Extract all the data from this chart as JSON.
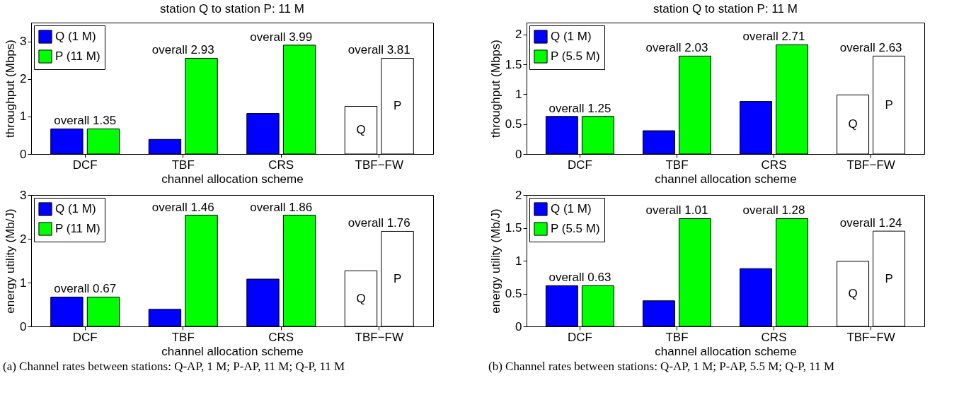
{
  "chart_data": [
    {
      "type": "bar",
      "title": "station Q to station P: 11 M",
      "xlabel": "channel allocation scheme",
      "ylabel": "throughput (Mbps)",
      "categories": [
        "DCF",
        "TBF",
        "CRS",
        "TBF−FW"
      ],
      "ylim": [
        0,
        3.5
      ],
      "yticks": [
        0,
        1,
        2,
        3
      ],
      "legend": "top left",
      "series": [
        {
          "name": "Q (1 M)",
          "color": "#0000ff",
          "colors": [
            "#0000ff",
            "#0000ff",
            "#0000ff",
            "#ffffff"
          ],
          "values": [
            0.67,
            0.39,
            1.08,
            1.27
          ],
          "value_labels": [
            null,
            null,
            null,
            "Q"
          ]
        },
        {
          "name": "P (11 M)",
          "color": "#00ff00",
          "colors": [
            "#00ff00",
            "#00ff00",
            "#00ff00",
            "#ffffff"
          ],
          "values": [
            0.67,
            2.55,
            2.9,
            2.55
          ],
          "value_labels": [
            null,
            null,
            null,
            "P"
          ]
        }
      ],
      "annotations": [
        {
          "text": "overall 1.35",
          "x": "DCF",
          "y": 0.67
        },
        {
          "text": "overall 2.93",
          "x": "TBF",
          "y": 2.55
        },
        {
          "text": "overall 3.99",
          "x": "CRS",
          "y": 2.9
        },
        {
          "text": "overall 3.81",
          "x": "TBF−FW",
          "y": 2.55
        }
      ]
    },
    {
      "type": "bar",
      "title": "station Q to station P: 11 M",
      "xlabel": "channel allocation scheme",
      "ylabel": "throughput (Mbps)",
      "categories": [
        "DCF",
        "TBF",
        "CRS",
        "TBF−FW"
      ],
      "ylim": [
        0,
        2.2
      ],
      "yticks": [
        0,
        0.5,
        1,
        1.5,
        2
      ],
      "legend": "top left",
      "series": [
        {
          "name": "Q (1 M)",
          "color": "#0000ff",
          "colors": [
            "#0000ff",
            "#0000ff",
            "#0000ff",
            "#ffffff"
          ],
          "values": [
            0.63,
            0.39,
            0.88,
            0.99
          ],
          "value_labels": [
            null,
            null,
            null,
            "Q"
          ]
        },
        {
          "name": "P (5.5 M)",
          "color": "#00ff00",
          "colors": [
            "#00ff00",
            "#00ff00",
            "#00ff00",
            "#ffffff"
          ],
          "values": [
            0.63,
            1.64,
            1.83,
            1.64
          ],
          "value_labels": [
            null,
            null,
            null,
            "P"
          ]
        }
      ],
      "annotations": [
        {
          "text": "overall 1.25",
          "x": "DCF",
          "y": 0.63
        },
        {
          "text": "overall 2.03",
          "x": "TBF",
          "y": 1.64
        },
        {
          "text": "overall 2.71",
          "x": "CRS",
          "y": 1.83
        },
        {
          "text": "overall 2.63",
          "x": "TBF−FW",
          "y": 1.64
        }
      ]
    },
    {
      "type": "bar",
      "xlabel": "channel allocation scheme",
      "ylabel": "energy utility (Mb/J)",
      "categories": [
        "DCF",
        "TBF",
        "CRS",
        "TBF−FW"
      ],
      "ylim": [
        0,
        3
      ],
      "yticks": [
        0,
        1,
        2,
        3
      ],
      "legend": "top left",
      "series": [
        {
          "name": "Q (1 M)",
          "color": "#0000ff",
          "colors": [
            "#0000ff",
            "#0000ff",
            "#0000ff",
            "#ffffff"
          ],
          "values": [
            0.67,
            0.39,
            1.08,
            1.27
          ],
          "value_labels": [
            null,
            null,
            null,
            "Q"
          ]
        },
        {
          "name": "P (11 M)",
          "color": "#00ff00",
          "colors": [
            "#00ff00",
            "#00ff00",
            "#00ff00",
            "#ffffff"
          ],
          "values": [
            0.67,
            2.54,
            2.54,
            2.17
          ],
          "value_labels": [
            null,
            null,
            null,
            "P"
          ]
        }
      ],
      "annotations": [
        {
          "text": "overall 0.67",
          "x": "DCF",
          "y": 0.67
        },
        {
          "text": "overall 1.46",
          "x": "TBF",
          "y": 2.54
        },
        {
          "text": "overall 1.86",
          "x": "CRS",
          "y": 2.54
        },
        {
          "text": "overall 1.76",
          "x": "TBF−FW",
          "y": 2.17
        },
        "(a) Channel rates between stations: Q-AP, 1 M; P-AP, 11 M; Q-P, 11 M"
      ]
    },
    {
      "type": "bar",
      "xlabel": "channel allocation scheme",
      "ylabel": "energy utility (Mb/J)",
      "categories": [
        "DCF",
        "TBF",
        "CRS",
        "TBF−FW"
      ],
      "ylim": [
        0,
        2
      ],
      "yticks": [
        0,
        0.5,
        1,
        1.5,
        2
      ],
      "legend": "top left",
      "series": [
        {
          "name": "Q (1 M)",
          "color": "#0000ff",
          "colors": [
            "#0000ff",
            "#0000ff",
            "#0000ff",
            "#ffffff"
          ],
          "values": [
            0.62,
            0.39,
            0.88,
            0.99
          ],
          "value_labels": [
            null,
            null,
            null,
            "Q"
          ]
        },
        {
          "name": "P (5.5 M)",
          "color": "#00ff00",
          "colors": [
            "#00ff00",
            "#00ff00",
            "#00ff00",
            "#ffffff"
          ],
          "values": [
            0.62,
            1.64,
            1.64,
            1.45
          ],
          "value_labels": [
            null,
            null,
            null,
            "P"
          ]
        }
      ],
      "annotations": [
        {
          "text": "overall 0.63",
          "x": "DCF",
          "y": 0.62
        },
        {
          "text": "overall 1.01",
          "x": "TBF",
          "y": 1.64
        },
        {
          "text": "overall 1.28",
          "x": "CRS",
          "y": 1.64
        },
        {
          "text": "overall 1.24",
          "x": "TBF−FW",
          "y": 1.45
        },
        "(b) Channel rates between stations: Q-AP, 1 M; P-AP, 5.5 M; Q-P, 11 M"
      ]
    }
  ]
}
